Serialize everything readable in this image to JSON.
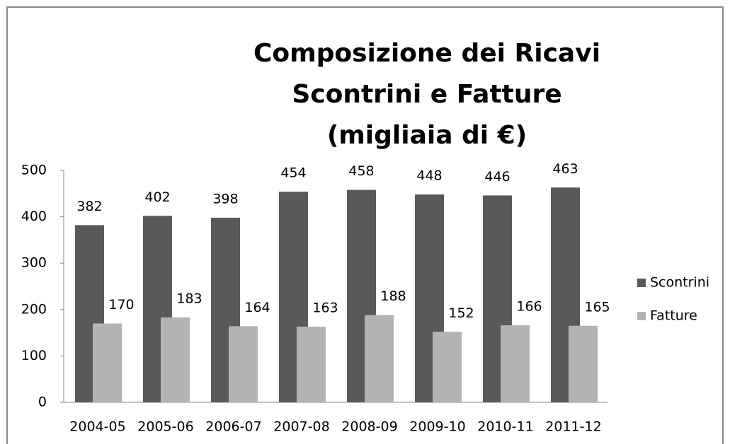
{
  "chart_data": {
    "type": "bar",
    "title": [
      "Composizione dei Ricavi",
      "Scontrini e Fatture",
      "(migliaia di €)"
    ],
    "categories": [
      "2004-05",
      "2005-06",
      "2006-07",
      "2007-08",
      "2008-09",
      "2009-10",
      "2010-11",
      "2011-12"
    ],
    "series": [
      {
        "name": "Scontrini",
        "color": "#595959",
        "values": [
          382,
          402,
          398,
          454,
          458,
          448,
          446,
          463
        ]
      },
      {
        "name": "Fatture",
        "color": "#b3b3b3",
        "values": [
          170,
          183,
          164,
          163,
          188,
          152,
          166,
          165
        ]
      }
    ],
    "ylim": [
      0,
      500
    ],
    "yticks": [
      0,
      100,
      200,
      300,
      400,
      500
    ],
    "legend": "right"
  }
}
